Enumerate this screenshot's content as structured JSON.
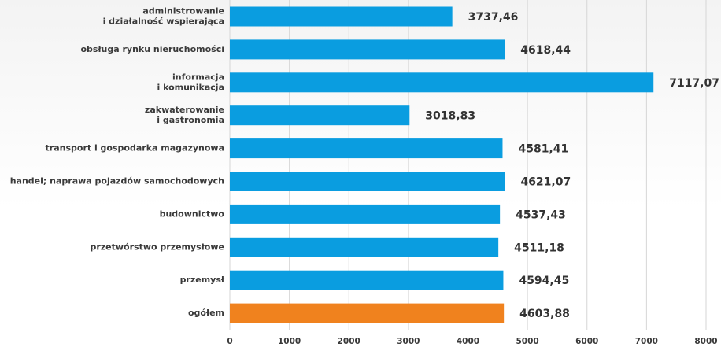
{
  "chart_data": {
    "type": "bar",
    "orientation": "horizontal",
    "categories": [
      "administrowanie\ni działalność wspierająca",
      "obsługa rynku nieruchomości",
      "informacja\ni komunikacja",
      "zakwaterowanie\ni gastronomia",
      "transport i gospodarka magazynowa",
      "handel; naprawa pojazdów samochodowych",
      "budownictwo",
      "przetwórstwo przemysłowe",
      "przemysł",
      "ogółem"
    ],
    "values": [
      3737.46,
      4618.44,
      7117.07,
      3018.83,
      4581.41,
      4621.07,
      4537.43,
      4511.18,
      4594.45,
      4603.88
    ],
    "value_labels": [
      "3737,46",
      "4618,44",
      "7117,07",
      "3018,83",
      "4581,41",
      "4621,07",
      "4537,43",
      "4511,18",
      "4594,45",
      "4603,88"
    ],
    "colors": [
      "#0a9de0",
      "#0a9de0",
      "#0a9de0",
      "#0a9de0",
      "#0a9de0",
      "#0a9de0",
      "#0a9de0",
      "#0a9de0",
      "#0a9de0",
      "#f0821e"
    ],
    "xlim": [
      0,
      8000
    ],
    "xticks": [
      0,
      1000,
      2000,
      3000,
      4000,
      5000,
      6000,
      7000,
      8000
    ],
    "grid": true
  }
}
